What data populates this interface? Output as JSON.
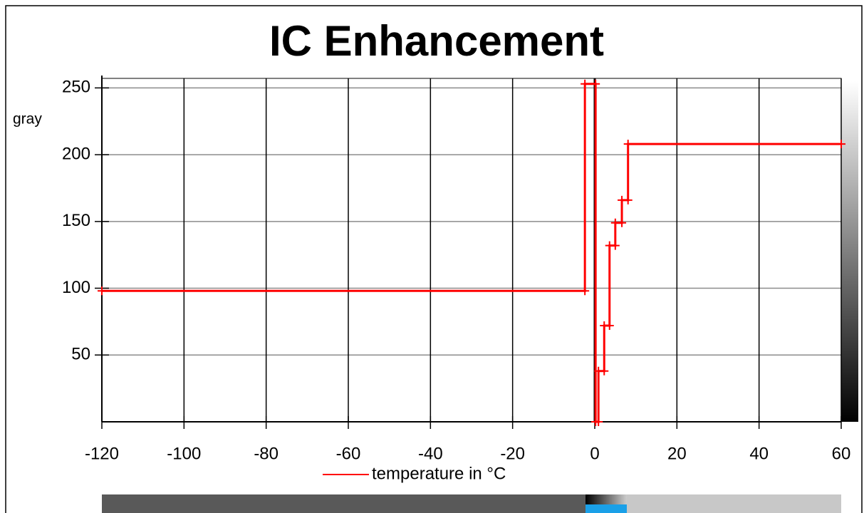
{
  "chart_data": {
    "type": "line",
    "title": "IC Enhancement",
    "y_label": "gray",
    "x": [
      -120,
      -2.4,
      -2.4,
      0.2,
      0.2,
      0.9,
      0.9,
      2.3,
      2.3,
      3.6,
      3.6,
      5.0,
      5.0,
      6.6,
      6.6,
      8.1,
      8.1,
      60
    ],
    "series": [
      {
        "name": "temperature in °C",
        "color": "#ff0000",
        "values": [
          98,
          98,
          253,
          253,
          0,
          0,
          38,
          38,
          72,
          72,
          132,
          132,
          149,
          149,
          166,
          166,
          208,
          208
        ]
      }
    ],
    "xlim": [
      -120,
      60
    ],
    "xticks": [
      -120,
      -100,
      -80,
      -60,
      -40,
      -20,
      0,
      20,
      40,
      60
    ],
    "ylim": [
      0,
      255
    ],
    "yticks": [
      50,
      100,
      150,
      200,
      250
    ],
    "grid": true
  }
}
